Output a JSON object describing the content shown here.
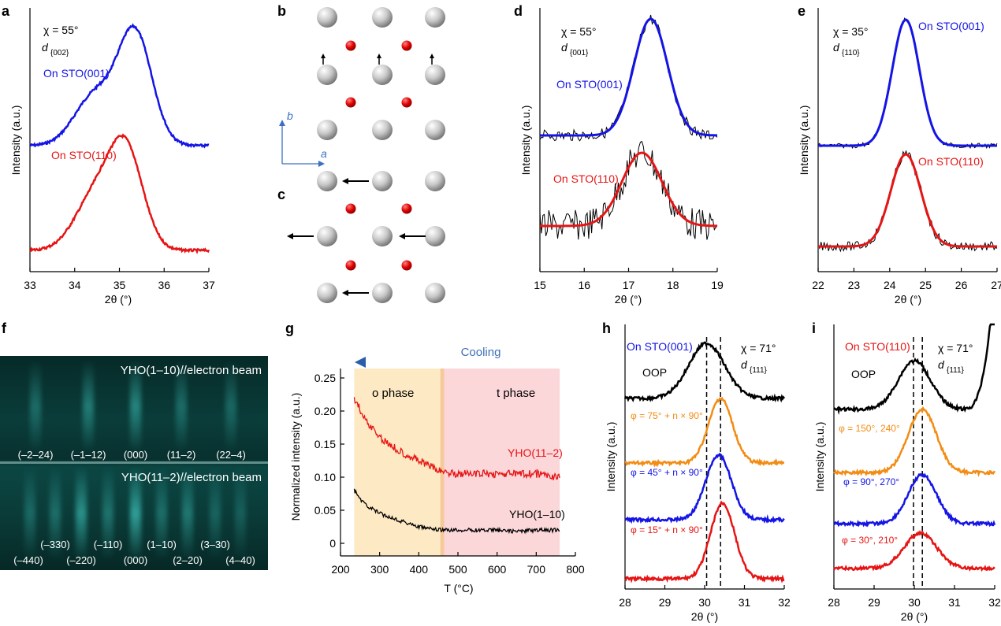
{
  "panels": {
    "a": {
      "label": "a",
      "chi": "χ = 55°",
      "d": "d",
      "dsub": "{002}",
      "xlabel": "2θ (°)",
      "ylabel": "Intensity (a.u.)",
      "xticks": [
        "33",
        "34",
        "35",
        "36",
        "37"
      ],
      "series": [
        "On STO(001)",
        "On STO(110)"
      ],
      "colors": [
        "#1414e6",
        "#e61414"
      ]
    },
    "b": {
      "label": "b",
      "axis_b": "b",
      "axis_a": "a"
    },
    "c": {
      "label": "c"
    },
    "d": {
      "label": "d",
      "chi": "χ = 55°",
      "d": "d",
      "dsub": "{001}",
      "xlabel": "2θ (°)",
      "ylabel": "Intensity (a.u.)",
      "xticks": [
        "15",
        "16",
        "17",
        "18",
        "19"
      ],
      "series": [
        "On STO(001)",
        "On STO(110)"
      ]
    },
    "e": {
      "label": "e",
      "chi": "χ = 35°",
      "d": "d",
      "dsub": "{110}",
      "xlabel": "2θ (°)",
      "ylabel": "Intensity (a.u.)",
      "xticks": [
        "22",
        "23",
        "24",
        "25",
        "26",
        "27"
      ],
      "series": [
        "On STO(001)",
        "On STO(110)"
      ]
    },
    "f": {
      "label": "f",
      "title_top": "YHO(1–10)//electron beam",
      "title_bottom": "YHO(11–2)//electron beam",
      "spots_top": [
        "(–2–24)",
        "(–1–12)",
        "(000)",
        "(11–2)",
        "(22–4)"
      ],
      "spots_bottom_upper": [
        "(–330)",
        "(–110)",
        "(1–10)",
        "(3–30)"
      ],
      "spots_bottom_lower": [
        "(–440)",
        "(–220)",
        "(000)",
        "(2–20)",
        "(4–40)"
      ]
    },
    "g": {
      "label": "g",
      "cooling": "Cooling",
      "o_phase": "o phase",
      "t_phase": "t phase",
      "xlabel": "T (°C)",
      "ylabel": "Normalized intensity (a.u.)",
      "xticks": [
        "200",
        "300",
        "400",
        "500",
        "600",
        "700",
        "800"
      ],
      "yticks": [
        "0",
        "0.05",
        "0.10",
        "0.15",
        "0.20",
        "0.25"
      ],
      "series": [
        "YHO(11–2)",
        "YHO(1–10)"
      ]
    },
    "h": {
      "label": "h",
      "substrate": "On STO(001)",
      "chi": "χ = 71°",
      "d": "d",
      "dsub": "{111}",
      "oop": "OOP",
      "xlabel": "2θ (°)",
      "ylabel": "Intensity (a.u.)",
      "xticks": [
        "28",
        "29",
        "30",
        "31",
        "32"
      ],
      "phi": [
        "φ = 75° + n × 90°",
        "φ = 45° + n × 90°",
        "φ = 15° + n × 90°"
      ]
    },
    "i": {
      "label": "i",
      "substrate": "On STO(110)",
      "chi": "χ = 71°",
      "d": "d",
      "dsub": "{111}",
      "oop": "OOP",
      "xlabel": "2θ (°)",
      "ylabel": "Intensity (a.u.)",
      "xticks": [
        "28",
        "29",
        "30",
        "31",
        "32"
      ],
      "phi": [
        "φ = 150°, 240°",
        "φ = 90°, 270°",
        "φ = 30°, 210°"
      ]
    }
  },
  "chart_data": [
    {
      "panel": "a",
      "type": "line",
      "xlim": [
        33,
        37
      ],
      "series": [
        {
          "name": "On STO(001)",
          "peak": 35.35,
          "color": "#1414e6"
        },
        {
          "name": "On STO(110)",
          "peak": 35.15,
          "color": "#e61414"
        }
      ]
    },
    {
      "panel": "d",
      "type": "line",
      "xlim": [
        15,
        19
      ],
      "series": [
        {
          "name": "On STO(001)",
          "peak": 17.5,
          "color": "#1414e6"
        },
        {
          "name": "On STO(110)",
          "peak": 17.3,
          "color": "#e61414"
        }
      ]
    },
    {
      "panel": "e",
      "type": "line",
      "xlim": [
        22,
        27
      ],
      "series": [
        {
          "name": "On STO(001)",
          "peak": 24.45,
          "color": "#1414e6"
        },
        {
          "name": "On STO(110)",
          "peak": 24.45,
          "color": "#e61414"
        }
      ]
    },
    {
      "panel": "g",
      "type": "line",
      "xlim": [
        200,
        800
      ],
      "ylim": [
        -0.02,
        0.26
      ],
      "regions": [
        {
          "name": "o phase",
          "x": [
            235,
            455
          ],
          "color": "#fdeac4"
        },
        {
          "name": "t phase",
          "x": [
            465,
            760
          ],
          "color": "#fbd7da"
        }
      ],
      "series": [
        {
          "name": "YHO(11–2)",
          "color": "#e61414",
          "x": [
            235,
            260,
            300,
            350,
            400,
            450,
            500,
            550,
            600,
            650,
            700,
            760
          ],
          "y": [
            0.22,
            0.19,
            0.16,
            0.14,
            0.125,
            0.11,
            0.105,
            0.105,
            0.105,
            0.105,
            0.105,
            0.1
          ]
        },
        {
          "name": "YHO(1–10)",
          "color": "#000000",
          "x": [
            235,
            260,
            300,
            350,
            400,
            450,
            500,
            550,
            600,
            650,
            700,
            760
          ],
          "y": [
            0.08,
            0.06,
            0.045,
            0.035,
            0.025,
            0.02,
            0.02,
            0.02,
            0.02,
            0.018,
            0.02,
            0.02
          ]
        }
      ]
    },
    {
      "panel": "h",
      "type": "line",
      "xlim": [
        28,
        32
      ],
      "dashed_x": [
        30.05,
        30.4
      ],
      "series": [
        {
          "name": "OOP",
          "peak": 30.05,
          "color": "#000000"
        },
        {
          "name": "φ = 75° + n × 90°",
          "peak": 30.4,
          "color": "#f28c14"
        },
        {
          "name": "φ = 45° + n × 90°",
          "peak": 30.35,
          "color": "#1414e6"
        },
        {
          "name": "φ = 15° + n × 90°",
          "peak": 30.45,
          "color": "#e61414"
        }
      ]
    },
    {
      "panel": "i",
      "type": "line",
      "xlim": [
        28,
        32
      ],
      "dashed_x": [
        29.98,
        30.2
      ],
      "series": [
        {
          "name": "OOP",
          "peak": 30.0,
          "color": "#000000"
        },
        {
          "name": "φ = 150°, 240°",
          "peak": 30.2,
          "color": "#f28c14"
        },
        {
          "name": "φ = 90°, 270°",
          "peak": 30.2,
          "color": "#1414e6"
        },
        {
          "name": "φ = 30°, 210°",
          "peak": 30.15,
          "color": "#e61414"
        }
      ]
    }
  ]
}
